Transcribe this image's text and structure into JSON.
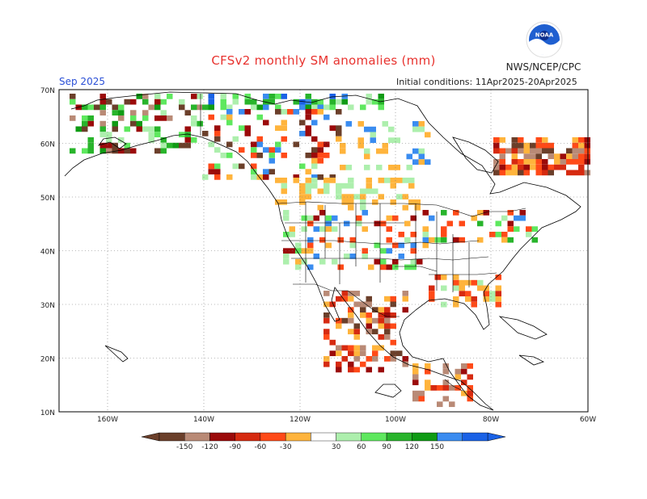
{
  "title": "CFSv2 monthly SM anomalies (mm)",
  "org_label": "NWS/NCEP/CPC",
  "logo_text": "NOAA",
  "period": "Sep 2025",
  "initial_conditions": "Initial conditions: 11Apr2025-20Apr2025",
  "lat_labels": [
    "70N",
    "60N",
    "50N",
    "40N",
    "30N",
    "20N",
    "10N"
  ],
  "lon_labels": [
    "160W",
    "140W",
    "120W",
    "100W",
    "80W",
    "60W"
  ],
  "legend": {
    "ticks": [
      "-150",
      "-120",
      "-90",
      "-60",
      "-30",
      "30",
      "60",
      "90",
      "120",
      "150"
    ],
    "colors": [
      "#6b3f2a",
      "#b98a76",
      "#9b0a0a",
      "#d62a10",
      "#ff4a18",
      "#ffb43c",
      "#ffffff",
      "#adefad",
      "#5ee85e",
      "#28b42b",
      "#0f9b14",
      "#3a8cf0",
      "#1a62e6"
    ]
  }
}
